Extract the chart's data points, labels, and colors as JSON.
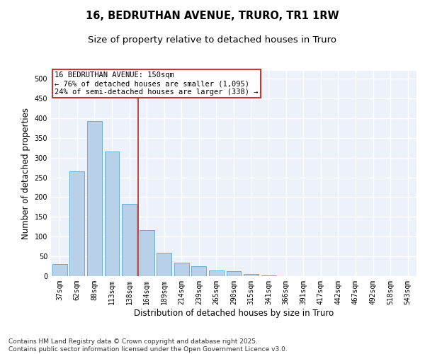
{
  "title_line1": "16, BEDRUTHAN AVENUE, TRURO, TR1 1RW",
  "title_line2": "Size of property relative to detached houses in Truro",
  "xlabel": "Distribution of detached houses by size in Truro",
  "ylabel": "Number of detached properties",
  "categories": [
    "37sqm",
    "62sqm",
    "88sqm",
    "113sqm",
    "138sqm",
    "164sqm",
    "189sqm",
    "214sqm",
    "239sqm",
    "265sqm",
    "290sqm",
    "315sqm",
    "341sqm",
    "366sqm",
    "391sqm",
    "417sqm",
    "442sqm",
    "467sqm",
    "492sqm",
    "518sqm",
    "543sqm"
  ],
  "values": [
    30,
    265,
    393,
    315,
    183,
    117,
    59,
    34,
    25,
    14,
    13,
    5,
    1,
    0,
    0,
    0,
    0,
    0,
    0,
    0,
    0
  ],
  "bar_color": "#b8d0e8",
  "bar_edge_color": "#6aaed6",
  "background_color": "#edf2fa",
  "grid_color": "#ffffff",
  "vline_color": "#c0392b",
  "vline_x_index": 5,
  "annotation_title": "16 BEDRUTHAN AVENUE: 150sqm",
  "annotation_line1": "← 76% of detached houses are smaller (1,095)",
  "annotation_line2": "24% of semi-detached houses are larger (338) →",
  "annotation_box_color": "#c0392b",
  "ylim": [
    0,
    520
  ],
  "yticks": [
    0,
    50,
    100,
    150,
    200,
    250,
    300,
    350,
    400,
    450,
    500
  ],
  "footer": "Contains HM Land Registry data © Crown copyright and database right 2025.\nContains public sector information licensed under the Open Government Licence v3.0.",
  "title_fontsize": 10.5,
  "subtitle_fontsize": 9.5,
  "axis_label_fontsize": 8.5,
  "tick_fontsize": 7,
  "annotation_fontsize": 7.5,
  "footer_fontsize": 6.5
}
